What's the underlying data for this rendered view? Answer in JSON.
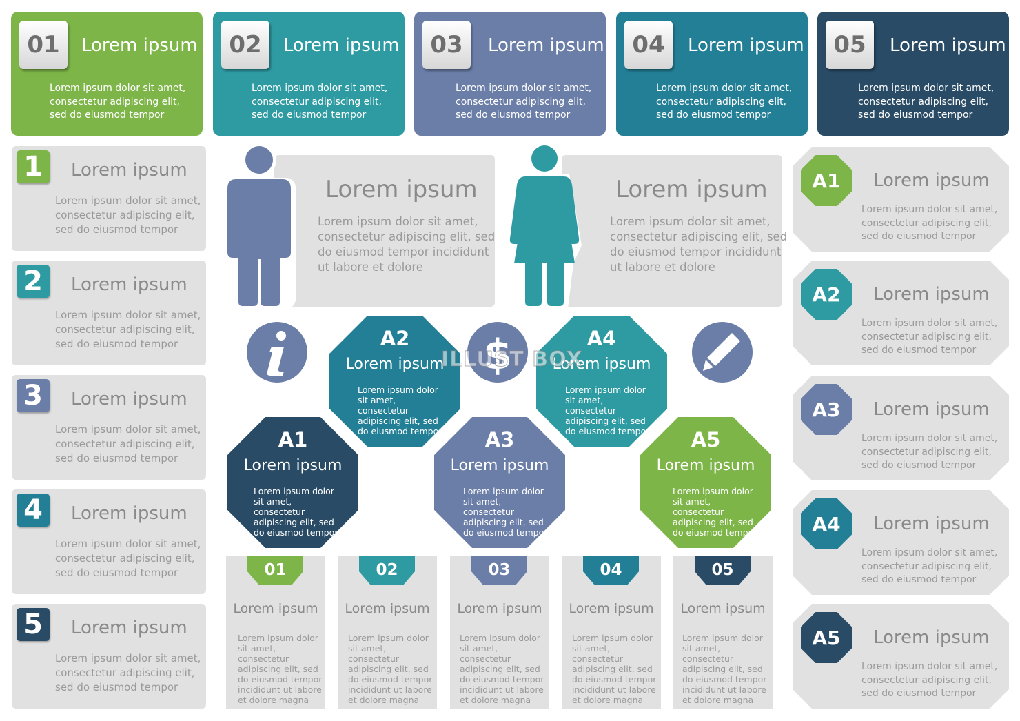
{
  "colors": {
    "green": "#7db548",
    "teal": "#2e9ba3",
    "slate": "#6b7ea8",
    "blue": "#237f96",
    "navy": "#294b66",
    "card_gray": "#e1e1e1"
  },
  "top_cards": [
    {
      "num": "01",
      "title": "Lorem ipsum",
      "body": "Lorem ipsum dolor sit amet, consectetur adipiscing elit, sed do eiusmod tempor"
    },
    {
      "num": "02",
      "title": "Lorem ipsum",
      "body": "Lorem ipsum dolor sit amet, consectetur adipiscing elit, sed do eiusmod tempor"
    },
    {
      "num": "03",
      "title": "Lorem ipsum",
      "body": "Lorem ipsum dolor sit amet, consectetur adipiscing elit, sed do eiusmod tempor"
    },
    {
      "num": "04",
      "title": "Lorem ipsum",
      "body": "Lorem ipsum dolor sit amet, consectetur adipiscing elit, sed do eiusmod tempor"
    },
    {
      "num": "05",
      "title": "Lorem ipsum",
      "body": "Lorem ipsum dolor sit amet, consectetur adipiscing elit, sed do eiusmod tempor"
    }
  ],
  "left_cards": [
    {
      "num": "1",
      "title": "Lorem ipsum",
      "body": "Lorem ipsum dolor sit amet, consectetur adipiscing elit, sed do eiusmod tempor"
    },
    {
      "num": "2",
      "title": "Lorem ipsum",
      "body": "Lorem ipsum dolor sit amet, consectetur adipiscing elit, sed do eiusmod tempor"
    },
    {
      "num": "3",
      "title": "Lorem ipsum",
      "body": "Lorem ipsum dolor sit amet, consectetur adipiscing elit, sed do eiusmod tempor"
    },
    {
      "num": "4",
      "title": "Lorem ipsum",
      "body": "Lorem ipsum dolor sit amet, consectetur adipiscing elit, sed do eiusmod tempor"
    },
    {
      "num": "5",
      "title": "Lorem ipsum",
      "body": "Lorem ipsum dolor sit amet, consectetur adipiscing elit, sed do eiusmod tempor"
    }
  ],
  "right_cards": [
    {
      "id": "A1",
      "title": "Lorem ipsum",
      "body": "Lorem ipsum dolor sit amet, consectetur adipiscing elit, sed do eiusmod tempor"
    },
    {
      "id": "A2",
      "title": "Lorem ipsum",
      "body": "Lorem ipsum dolor sit amet, consectetur adipiscing elit, sed do eiusmod tempor"
    },
    {
      "id": "A3",
      "title": "Lorem ipsum",
      "body": "Lorem ipsum dolor sit amet, consectetur adipiscing elit, sed do eiusmod tempor"
    },
    {
      "id": "A4",
      "title": "Lorem ipsum",
      "body": "Lorem ipsum dolor sit amet, consectetur adipiscing elit, sed do eiusmod tempor"
    },
    {
      "id": "A5",
      "title": "Lorem ipsum",
      "body": "Lorem ipsum dolor sit amet, consectetur adipiscing elit, sed do eiusmod tempor"
    }
  ],
  "person_cards": [
    {
      "icon": "man-icon",
      "title": "Lorem ipsum",
      "body": "Lorem ipsum dolor sit amet, consectetur adipiscing elit, sed do eiusmod tempor incididunt ut labore et dolore"
    },
    {
      "icon": "woman-icon",
      "title": "Lorem ipsum",
      "body": "Lorem ipsum dolor sit amet, consectetur adipiscing elit, sed do eiusmod tempor incididunt ut labore et dolore"
    }
  ],
  "center_icons": [
    "info-icon",
    "dollar-icon",
    "pencil-icon"
  ],
  "octagons": [
    {
      "id": "A1",
      "title": "Lorem ipsum",
      "body": "Lorem ipsum dolor sit amet, consectetur adipiscing elit, sed do eiusmod tempor"
    },
    {
      "id": "A2",
      "title": "Lorem ipsum",
      "body": "Lorem ipsum dolor sit amet, consectetur adipiscing elit, sed do eiusmod tempor"
    },
    {
      "id": "A3",
      "title": "Lorem ipsum",
      "body": "Lorem ipsum dolor sit amet, consectetur adipiscing elit, sed do eiusmod tempor"
    },
    {
      "id": "A4",
      "title": "Lorem ipsum",
      "body": "Lorem ipsum dolor sit amet, consectetur adipiscing elit, sed do eiusmod tempor"
    },
    {
      "id": "A5",
      "title": "Lorem ipsum",
      "body": "Lorem ipsum dolor sit amet, consectetur adipiscing elit, sed do eiusmod tempor"
    }
  ],
  "bottom_cards": [
    {
      "num": "01",
      "title": "Lorem ipsum",
      "body": "Lorem ipsum dolor sit amet, consectetur adipiscing elit, sed do eiusmod tempor incididunt ut labore et dolore magna"
    },
    {
      "num": "02",
      "title": "Lorem ipsum",
      "body": "Lorem ipsum dolor sit amet, consectetur adipiscing elit, sed do eiusmod tempor incididunt ut labore et dolore magna"
    },
    {
      "num": "03",
      "title": "Lorem ipsum",
      "body": "Lorem ipsum dolor sit amet, consectetur adipiscing elit, sed do eiusmod tempor incididunt ut labore et dolore magna"
    },
    {
      "num": "04",
      "title": "Lorem ipsum",
      "body": "Lorem ipsum dolor sit amet, consectetur adipiscing elit, sed do eiusmod tempor incididunt ut labore et dolore magna"
    },
    {
      "num": "05",
      "title": "Lorem ipsum",
      "body": "Lorem ipsum dolor sit amet, consectetur adipiscing elit, sed do eiusmod tempor incididunt ut labore et dolore magna"
    }
  ],
  "watermark": "ILLUST BOX"
}
